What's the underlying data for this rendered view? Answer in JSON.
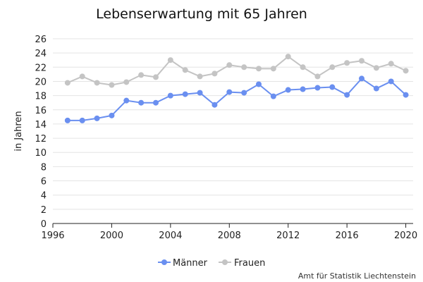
{
  "colors": {
    "maenner": "#6a8ff0",
    "frauen": "#c4c4c4",
    "grid": "#e4e4e4",
    "axis": "#222222"
  },
  "chart_data": {
    "type": "line",
    "title": "Lebenserwartung mit 65 Jahren",
    "xlabel": "",
    "ylabel": "in Jahren",
    "xlim": [
      1996,
      2020.5
    ],
    "ylim": [
      0,
      26
    ],
    "x_ticks": [
      1996,
      2000,
      2004,
      2008,
      2012,
      2016,
      2020
    ],
    "y_ticks": [
      0,
      2,
      4,
      6,
      8,
      10,
      12,
      14,
      16,
      18,
      20,
      22,
      24,
      26
    ],
    "grid": true,
    "legend_position": "bottom-center",
    "x": [
      1997,
      1998,
      1999,
      2000,
      2001,
      2002,
      2003,
      2004,
      2005,
      2006,
      2007,
      2008,
      2009,
      2010,
      2011,
      2012,
      2013,
      2014,
      2015,
      2016,
      2017,
      2018,
      2019,
      2020
    ],
    "series": [
      {
        "name": "Männer",
        "color": "#6a8ff0",
        "values": [
          14.5,
          14.5,
          14.8,
          15.2,
          17.3,
          17.0,
          17.0,
          18.0,
          18.2,
          18.4,
          16.7,
          18.5,
          18.4,
          19.6,
          17.9,
          18.8,
          18.9,
          19.1,
          19.2,
          18.1,
          20.4,
          19.0,
          20.0,
          18.1
        ]
      },
      {
        "name": "Frauen",
        "color": "#c4c4c4",
        "values": [
          19.8,
          20.7,
          19.8,
          19.5,
          19.9,
          20.9,
          20.6,
          23.0,
          21.6,
          20.7,
          21.1,
          22.3,
          22.0,
          21.8,
          21.8,
          23.5,
          22.0,
          20.7,
          22.0,
          22.6,
          22.9,
          21.9,
          22.5,
          21.5
        ]
      }
    ],
    "source": "Amt für Statistik Liechtenstein"
  }
}
